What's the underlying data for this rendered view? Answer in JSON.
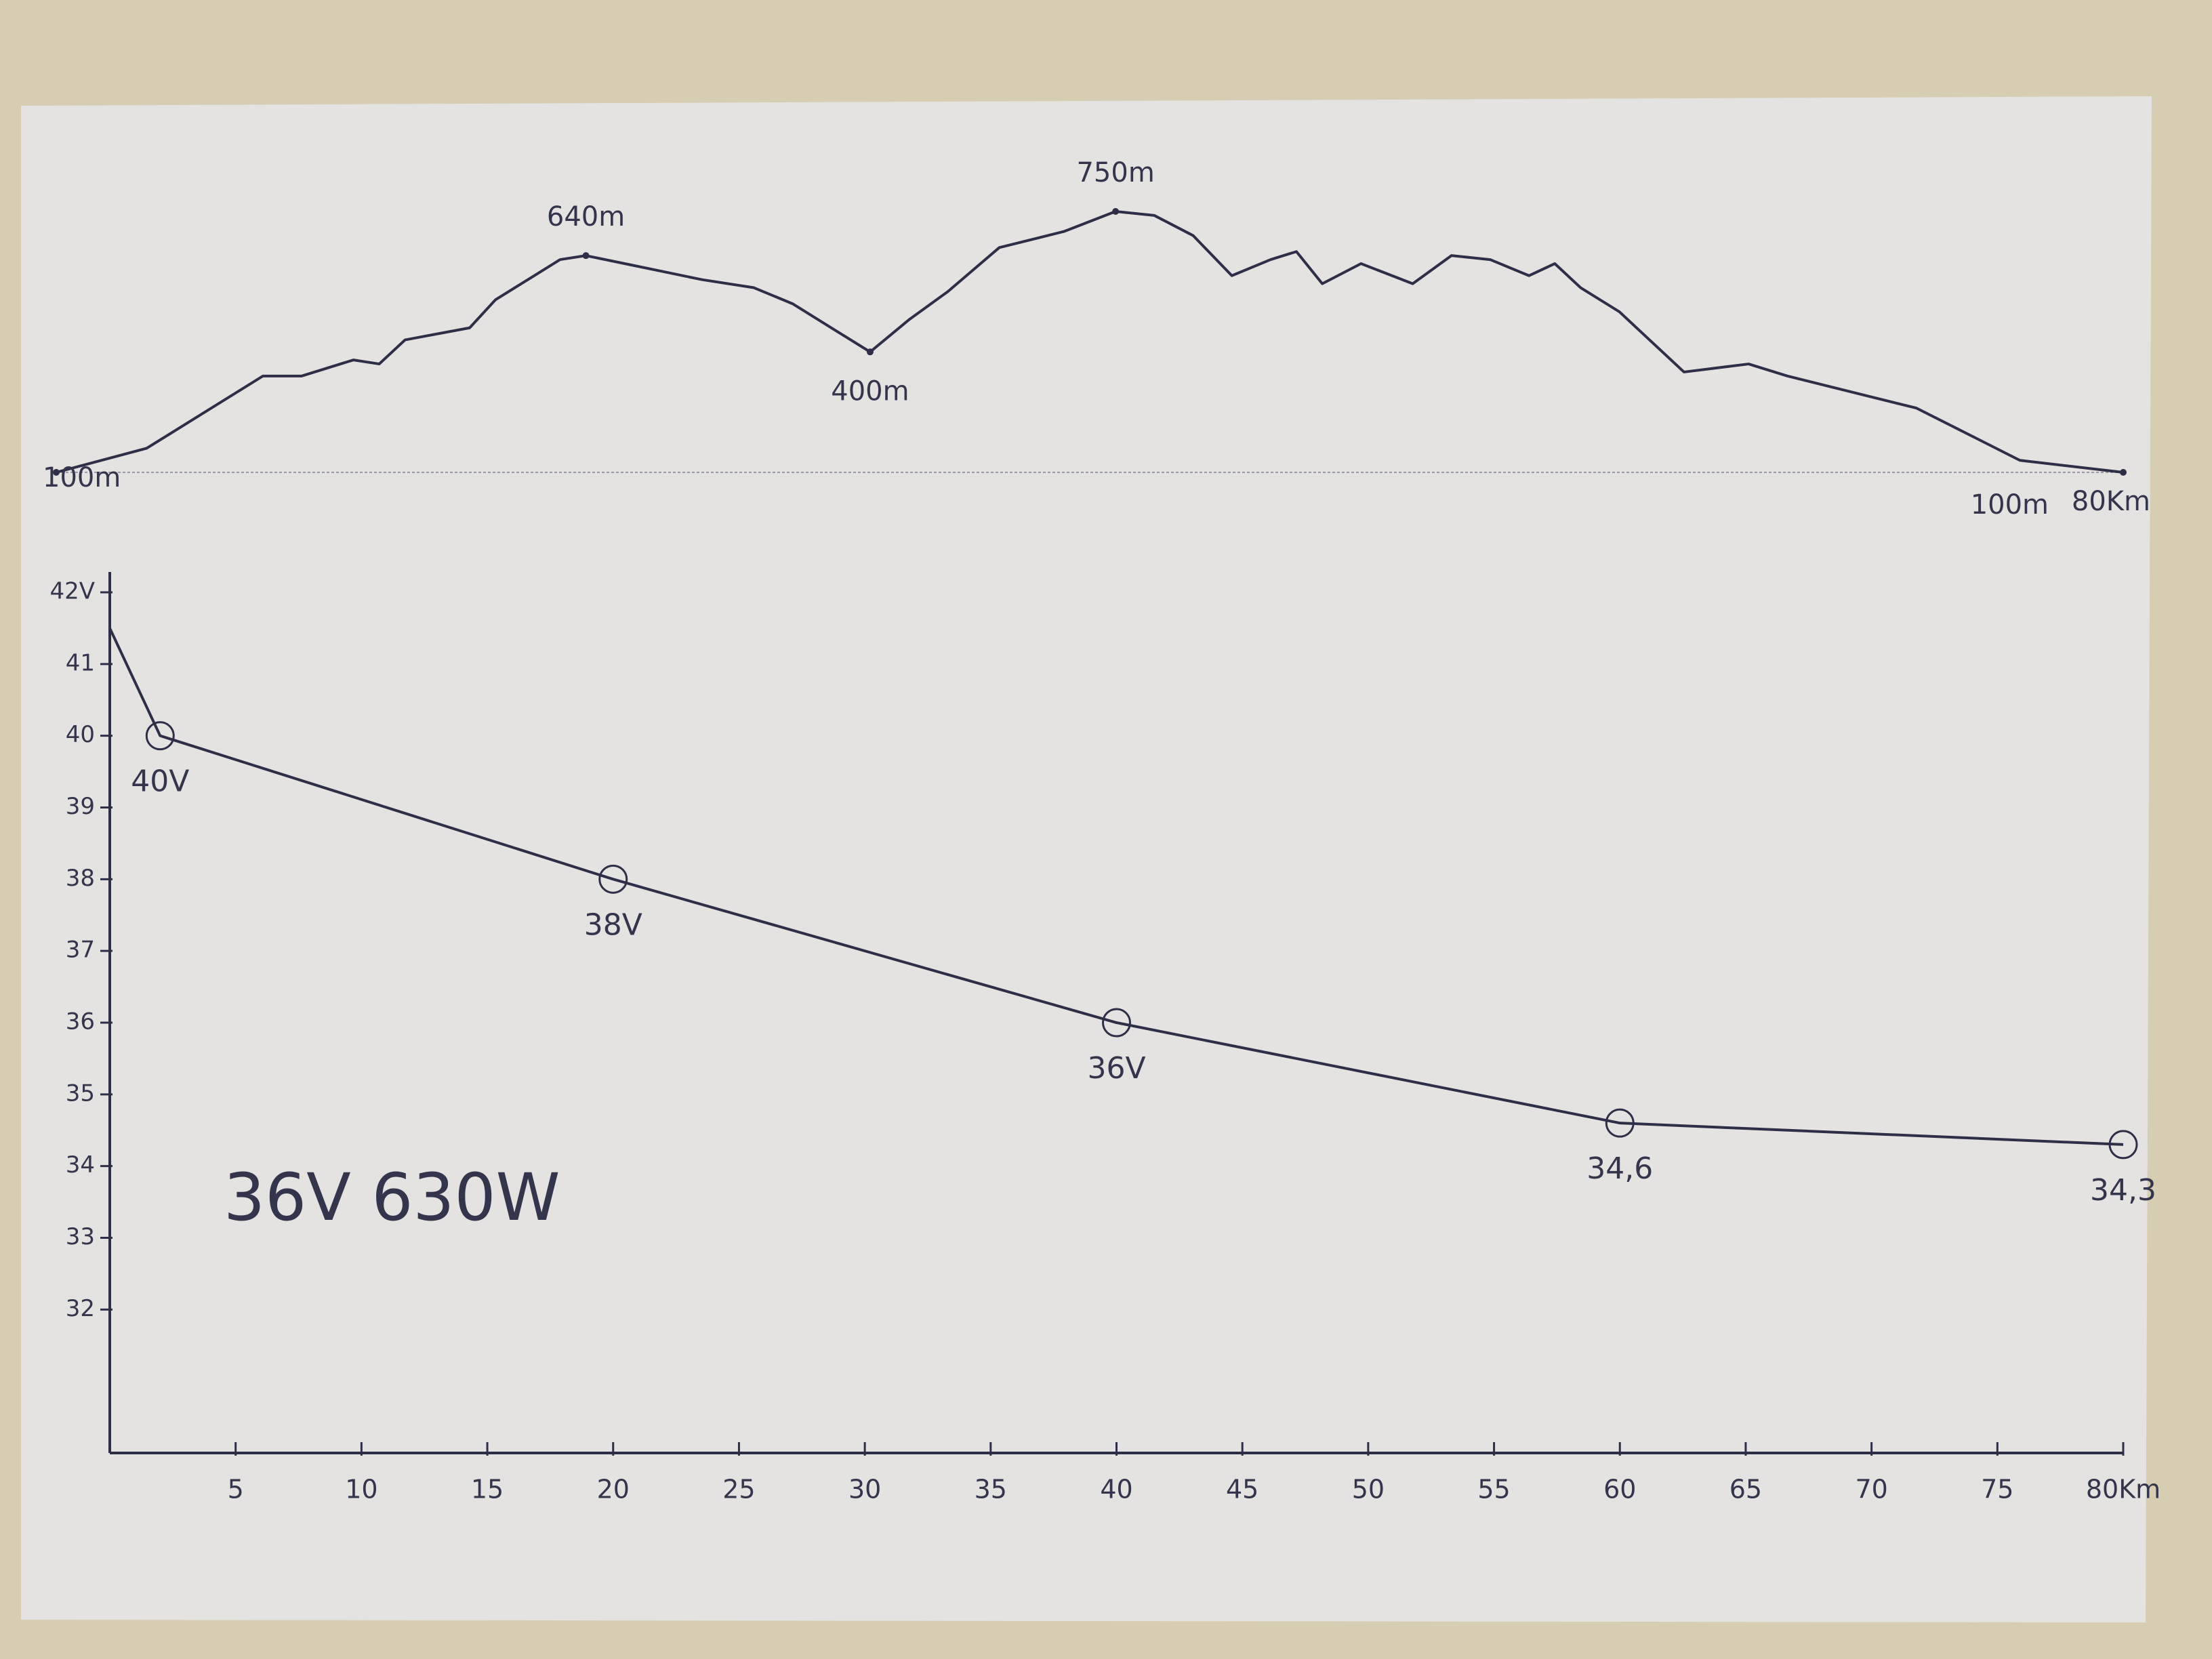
{
  "chart_data": [
    {
      "type": "line",
      "x": [
        0,
        3.5,
        5.5,
        8,
        9.5,
        11.5,
        12.5,
        13.5,
        16,
        17,
        18.5,
        19.5,
        20.5,
        22,
        23.5,
        25,
        27,
        28.5,
        30,
        31.5,
        33,
        34.5,
        36.5,
        39,
        41,
        42.5,
        44,
        45.5,
        47,
        48,
        49,
        50.5,
        52.5,
        54,
        55.5,
        57,
        58,
        59,
        60.5,
        63,
        65.5,
        67,
        69.5,
        72,
        76,
        80
      ],
      "values": [
        100,
        160,
        240,
        340,
        340,
        380,
        370,
        430,
        460,
        530,
        590,
        630,
        640,
        620,
        600,
        580,
        560,
        520,
        460,
        400,
        480,
        550,
        660,
        700,
        750,
        740,
        690,
        590,
        630,
        650,
        570,
        620,
        570,
        640,
        630,
        590,
        620,
        560,
        500,
        350,
        370,
        340,
        300,
        260,
        130,
        100
      ],
      "color": "#2e2e48",
      "annotations": [
        {
          "x": 0,
          "y": 100,
          "label": "100m"
        },
        {
          "x": 20.5,
          "y": 640,
          "label": "640m"
        },
        {
          "x": 31.5,
          "y": 400,
          "label": "400m"
        },
        {
          "x": 41,
          "y": 750,
          "label": "750m"
        },
        {
          "x": 80,
          "y": 100,
          "label": "100m"
        }
      ],
      "end_label": "80Km"
    },
    {
      "type": "line",
      "x": [
        0,
        2,
        20,
        40,
        60,
        80
      ],
      "values": [
        41.5,
        40,
        38,
        36,
        34.6,
        34.3
      ],
      "value_labels": [
        null,
        "40V",
        "38V",
        "36V",
        "34,6",
        "34,3"
      ],
      "color": "#2e2e48",
      "xlim": [
        0,
        80
      ],
      "xticks": [
        5,
        10,
        15,
        20,
        25,
        30,
        35,
        40,
        45,
        50,
        55,
        60,
        65,
        70,
        75,
        {
          "value": 80,
          "label": "80Km"
        }
      ],
      "ylim": [
        30,
        42
      ],
      "yticks": [
        32,
        33,
        34,
        35,
        36,
        37,
        38,
        39,
        40,
        41,
        {
          "value": 42,
          "label": "42V"
        }
      ],
      "annotation": "36V 630W"
    }
  ]
}
